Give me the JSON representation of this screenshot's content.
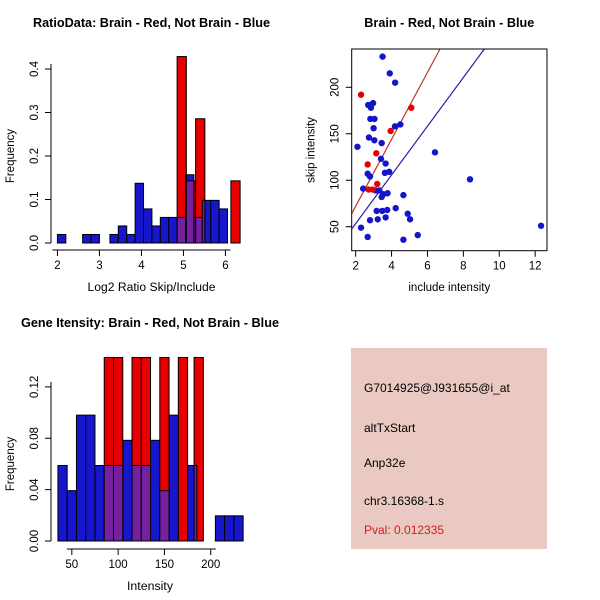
{
  "colors": {
    "background": "#ffffff",
    "hist_blue": "#1616cc",
    "hist_red": "#e60000",
    "overlap_purple": "#75209f",
    "point_blue": "#1414cc",
    "point_red": "#e60000",
    "line_red": "#c03333",
    "line_blue": "#2222aa",
    "axis": "#000000",
    "info_box_bg": "#e9c9c1",
    "pval_color": "#cc2222"
  },
  "chart_data": [
    {
      "id": "ratio-histogram",
      "type": "bar",
      "subtype": "overlaid-histogram",
      "title": "RatioData: Brain - Red, Not Brain - Blue",
      "xlabel": "Log2 Ratio Skip/Include",
      "ylabel": "Frequency",
      "xlim": [
        1.99,
        6.49
      ],
      "ylim": [
        0,
        0.4437
      ],
      "xticks": {
        "values": [
          2,
          3,
          4,
          5,
          6
        ],
        "labels": [
          "2",
          "3",
          "4",
          "5",
          "6"
        ]
      },
      "yticks": {
        "values": [
          0,
          0.1,
          0.2,
          0.3,
          0.4
        ],
        "labels": [
          "0.0",
          "0.1",
          "0.2",
          "0.3",
          "0.4"
        ]
      },
      "blue_bars": [
        [
          2.0,
          2.2,
          0.0196
        ],
        [
          2.6,
          2.8,
          0.0196
        ],
        [
          2.8,
          3.0,
          0.0196
        ],
        [
          3.25,
          3.45,
          0.0196
        ],
        [
          3.45,
          3.65,
          0.0392
        ],
        [
          3.65,
          3.85,
          0.0196
        ],
        [
          3.85,
          4.05,
          0.1373
        ],
        [
          4.05,
          4.25,
          0.0784
        ],
        [
          4.25,
          4.45,
          0.0392
        ],
        [
          4.45,
          4.65,
          0.0588
        ],
        [
          4.65,
          4.85,
          0.0588
        ],
        [
          4.85,
          5.05,
          0.0588
        ],
        [
          5.05,
          5.25,
          0.1569
        ],
        [
          5.25,
          5.45,
          0.0588
        ],
        [
          5.45,
          5.65,
          0.098
        ],
        [
          5.65,
          5.85,
          0.098
        ],
        [
          5.85,
          6.05,
          0.0784
        ]
      ],
      "red_bars": [
        [
          4.85,
          5.07,
          0.4286
        ],
        [
          5.07,
          5.29,
          0.1429
        ],
        [
          5.29,
          5.51,
          0.2857
        ],
        [
          6.13,
          6.35,
          0.1429
        ]
      ]
    },
    {
      "id": "intensity-scatter",
      "type": "scatter",
      "title": "Brain - Red, Not Brain - Blue",
      "xlabel": "include intensity",
      "ylabel": "skip intensity",
      "xlim": [
        1.78,
        12.66
      ],
      "ylim": [
        24.2,
        241.2
      ],
      "xticks": {
        "values": [
          2,
          4,
          6,
          8,
          10,
          12
        ],
        "labels": [
          "2",
          "4",
          "6",
          "8",
          "10",
          "12"
        ]
      },
      "yticks": {
        "values": [
          50,
          100,
          150,
          200
        ],
        "labels": [
          "50",
          "100",
          "150",
          "200"
        ]
      },
      "blue_points": [
        [
          3.5,
          233
        ],
        [
          3.9,
          215
        ],
        [
          4.2,
          205
        ],
        [
          2.7,
          181
        ],
        [
          2.85,
          178
        ],
        [
          2.97,
          183
        ],
        [
          2.82,
          166
        ],
        [
          3.05,
          166
        ],
        [
          4.49,
          160
        ],
        [
          3.0,
          156
        ],
        [
          4.19,
          158
        ],
        [
          2.1,
          136
        ],
        [
          2.74,
          146
        ],
        [
          3.04,
          143
        ],
        [
          3.45,
          140
        ],
        [
          3.41,
          123
        ],
        [
          3.67,
          118
        ],
        [
          6.42,
          130
        ],
        [
          2.67,
          107
        ],
        [
          2.8,
          104
        ],
        [
          3.63,
          108
        ],
        [
          3.87,
          109
        ],
        [
          8.37,
          101
        ],
        [
          2.42,
          91
        ],
        [
          3.12,
          89
        ],
        [
          3.32,
          89
        ],
        [
          3.54,
          85
        ],
        [
          3.78,
          86
        ],
        [
          3.45,
          82
        ],
        [
          4.66,
          84
        ],
        [
          4.23,
          70
        ],
        [
          3.17,
          67
        ],
        [
          3.48,
          67
        ],
        [
          3.76,
          68
        ],
        [
          4.9,
          64
        ],
        [
          2.8,
          57
        ],
        [
          3.23,
          58
        ],
        [
          3.67,
          60
        ],
        [
          5.03,
          58
        ],
        [
          2.3,
          49
        ],
        [
          12.33,
          51
        ],
        [
          2.67,
          39
        ],
        [
          4.66,
          36
        ],
        [
          5.46,
          41
        ]
      ],
      "red_points": [
        [
          2.3,
          192
        ],
        [
          5.1,
          178
        ],
        [
          3.95,
          153
        ],
        [
          3.15,
          129
        ],
        [
          2.67,
          117
        ],
        [
          3.2,
          96
        ],
        [
          2.72,
          90
        ],
        [
          2.95,
          90
        ]
      ],
      "fit_lines": [
        {
          "name": "brain-fit-line",
          "color_key": "line_red",
          "x1": 1.78,
          "y1": 64,
          "x2": 6.7,
          "y2": 241.2
        },
        {
          "name": "not-brain-fit-line",
          "color_key": "line_blue",
          "x1": 1.78,
          "y1": 47.5,
          "x2": 9.17,
          "y2": 241.2
        }
      ]
    },
    {
      "id": "gene-intensity-histogram",
      "type": "bar",
      "subtype": "overlaid-histogram",
      "title": "Gene Itensity: Brain - Red, Not Brain - Blue",
      "xlabel": "Intensity",
      "ylabel": "Frequency",
      "xlim": [
        34,
        237
      ],
      "ylim": [
        0,
        0.1425
      ],
      "xticks": {
        "values": [
          50,
          100,
          150,
          200
        ],
        "labels": [
          "50",
          "100",
          "150",
          "200"
        ]
      },
      "yticks": {
        "values": [
          0,
          0.04,
          0.08,
          0.12
        ],
        "labels": [
          "0.00",
          "0.04",
          "0.08",
          "0.12"
        ]
      },
      "blue_bars": [
        [
          35,
          45,
          0.0588
        ],
        [
          45,
          55,
          0.0392
        ],
        [
          55,
          65,
          0.098
        ],
        [
          65,
          75,
          0.098
        ],
        [
          75,
          85,
          0.0588
        ],
        [
          85,
          95,
          0.0588
        ],
        [
          95,
          105,
          0.0588
        ],
        [
          105,
          115,
          0.0784
        ],
        [
          115,
          125,
          0.0588
        ],
        [
          125,
          135,
          0.0588
        ],
        [
          135,
          145,
          0.0784
        ],
        [
          145,
          155,
          0.0392
        ],
        [
          155,
          165,
          0.098
        ],
        [
          175,
          185,
          0.0588
        ],
        [
          205,
          215,
          0.0196
        ],
        [
          215,
          225,
          0.0196
        ],
        [
          225,
          235,
          0.0196
        ]
      ],
      "red_bars": [
        [
          85,
          95,
          0.1429
        ],
        [
          95,
          105,
          0.1429
        ],
        [
          115,
          125,
          0.1429
        ],
        [
          125,
          135,
          0.1429
        ],
        [
          145,
          155,
          0.1429
        ],
        [
          165,
          175,
          0.1429
        ],
        [
          182,
          192,
          0.1429
        ]
      ]
    }
  ],
  "info_panel": {
    "probe_id": "G7014925@J931655@i_at",
    "event_type": "altTxStart",
    "gene": "Anp32e",
    "location": "chr3.16368-1.s",
    "pval": "Pval: 0.012335"
  }
}
